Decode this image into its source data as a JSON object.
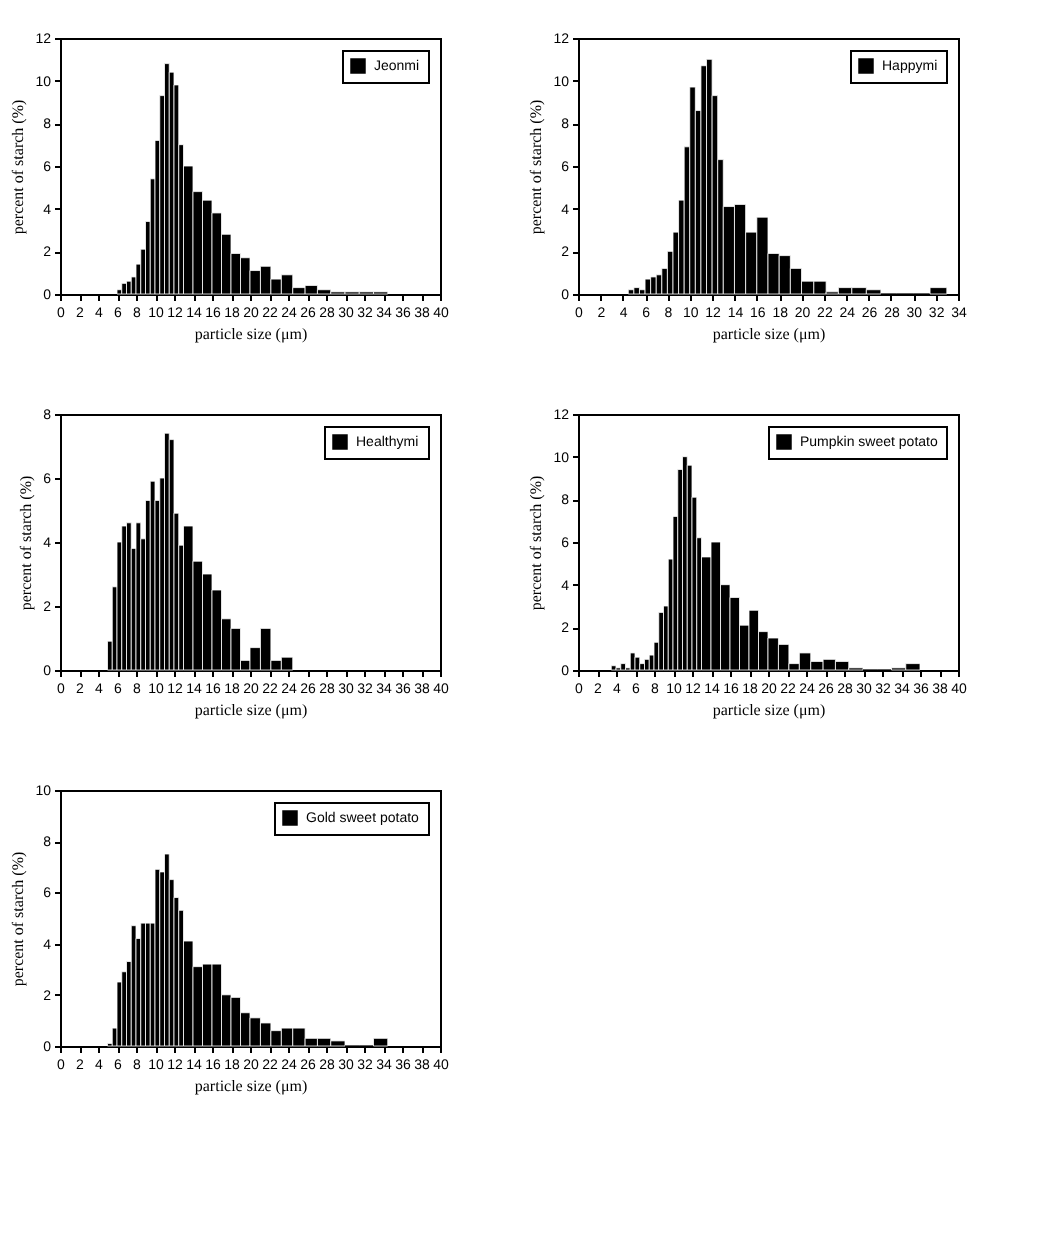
{
  "chart_data": [
    {
      "type": "histogram",
      "xlabel": "particle size (μm)",
      "ylabel": "percent of starch (%)",
      "xlim": [
        0,
        40
      ],
      "xticks": [
        0,
        2,
        4,
        6,
        8,
        10,
        12,
        14,
        16,
        18,
        20,
        22,
        24,
        26,
        28,
        30,
        32,
        34,
        36,
        38,
        40
      ],
      "ylim": [
        0,
        12
      ],
      "yticks": [
        0,
        2,
        4,
        6,
        8,
        10,
        12
      ],
      "legend": "top right",
      "bins": [
        6,
        6.5,
        7,
        7.5,
        8,
        8.5,
        9,
        9.5,
        10,
        10.5,
        11,
        11.5,
        12,
        12.5,
        13,
        14,
        15,
        16,
        17,
        18,
        19,
        20,
        21.1,
        22.2,
        23.3,
        24.5,
        25.8,
        27.1,
        28.5,
        30,
        31.5,
        33,
        34.5
      ],
      "series": [
        {
          "name": "Jeonmi",
          "color": "#000000",
          "values": [
            0.2,
            0.5,
            0.6,
            0.8,
            1.4,
            2.1,
            3.4,
            5.4,
            7.2,
            9.3,
            10.8,
            10.4,
            9.8,
            7.0,
            6.0,
            4.8,
            4.4,
            3.8,
            2.8,
            1.9,
            1.7,
            1.1,
            1.3,
            0.7,
            0.9,
            0.3,
            0.4,
            0.2,
            0.1,
            0.1,
            0.1,
            0.1
          ]
        }
      ]
    },
    {
      "type": "histogram",
      "xlabel": "particle size (μm)",
      "ylabel": "percent of starch (%)",
      "xlim": [
        0,
        34
      ],
      "xticks": [
        0,
        2,
        4,
        6,
        8,
        10,
        12,
        14,
        16,
        18,
        20,
        22,
        24,
        26,
        28,
        30,
        32,
        34
      ],
      "ylim": [
        0,
        12
      ],
      "yticks": [
        0,
        2,
        4,
        6,
        8,
        10,
        12
      ],
      "legend": "top right",
      "bins": [
        4.5,
        5,
        5.5,
        6,
        6.5,
        7,
        7.5,
        8,
        8.5,
        9,
        9.5,
        10,
        10.5,
        11,
        11.5,
        12,
        12.5,
        13,
        14,
        15,
        16,
        17,
        18,
        19,
        20,
        21.1,
        22.2,
        23.3,
        24.5,
        25.8,
        27.1,
        28.5,
        30,
        31.5,
        33
      ],
      "series": [
        {
          "name": "Happymi",
          "color": "#000000",
          "values": [
            0.2,
            0.3,
            0.2,
            0.7,
            0.8,
            0.9,
            1.2,
            2.0,
            2.9,
            4.4,
            6.9,
            9.7,
            8.6,
            10.7,
            11.0,
            9.3,
            6.3,
            4.1,
            4.2,
            2.9,
            3.6,
            1.9,
            1.8,
            1.2,
            0.6,
            0.6,
            0.1,
            0.3,
            0.3,
            0.2,
            0,
            0,
            0,
            0.3
          ]
        }
      ]
    },
    {
      "type": "histogram",
      "xlabel": "particle size (μm)",
      "ylabel": "percent of starch (%)",
      "xlim": [
        0,
        40
      ],
      "xticks": [
        0,
        2,
        4,
        6,
        8,
        10,
        12,
        14,
        16,
        18,
        20,
        22,
        24,
        26,
        28,
        30,
        32,
        34,
        36,
        38,
        40
      ],
      "ylim": [
        0,
        8
      ],
      "yticks": [
        0,
        2,
        4,
        6,
        8
      ],
      "legend": "top right",
      "bins": [
        5,
        5.5,
        6,
        6.5,
        7,
        7.5,
        8,
        8.5,
        9,
        9.5,
        10,
        10.5,
        11,
        11.5,
        12,
        12.5,
        13,
        14,
        15,
        16,
        17,
        18,
        19,
        20,
        21.1,
        22.2,
        23.3,
        24.5
      ],
      "series": [
        {
          "name": "Healthymi",
          "color": "#000000",
          "values": [
            0.9,
            2.6,
            4.0,
            4.5,
            4.6,
            3.8,
            4.6,
            4.1,
            5.3,
            5.9,
            5.3,
            6.0,
            7.4,
            7.2,
            4.9,
            3.9,
            4.5,
            3.4,
            3.0,
            2.5,
            1.6,
            1.3,
            0.3,
            0.7,
            1.3,
            0.3,
            0.4
          ]
        }
      ]
    },
    {
      "type": "histogram",
      "xlabel": "particle size (μm)",
      "ylabel": "percent of starch (%)",
      "xlim": [
        0,
        40
      ],
      "xticks": [
        0,
        2,
        4,
        6,
        8,
        10,
        12,
        14,
        16,
        18,
        20,
        22,
        24,
        26,
        28,
        30,
        32,
        34,
        36,
        38,
        40
      ],
      "ylim": [
        0,
        12
      ],
      "yticks": [
        0,
        2,
        4,
        6,
        8,
        10,
        12
      ],
      "legend": "top right",
      "bins": [
        3.5,
        4,
        4.5,
        5,
        5.5,
        6,
        6.5,
        7,
        7.5,
        8,
        8.5,
        9,
        9.5,
        10,
        10.5,
        11,
        11.5,
        12,
        12.5,
        13,
        14,
        15,
        16,
        17,
        18,
        19,
        20,
        21.1,
        22.2,
        23.3,
        24.5,
        25.8,
        27.1,
        28.5,
        30,
        31.5,
        33,
        34.5,
        36
      ],
      "series": [
        {
          "name": "Pumpkin sweet potato",
          "color": "#000000",
          "values": [
            0.2,
            0.1,
            0.3,
            0.1,
            0.8,
            0.6,
            0.3,
            0.5,
            0.7,
            1.3,
            2.7,
            3.0,
            5.2,
            7.2,
            9.4,
            10.0,
            9.6,
            8.1,
            6.2,
            5.3,
            6.0,
            4.0,
            3.4,
            2.1,
            2.8,
            1.8,
            1.5,
            1.2,
            0.3,
            0.8,
            0.4,
            0.5,
            0.4,
            0.1,
            0,
            0,
            0.1,
            0.3
          ]
        }
      ]
    },
    {
      "type": "histogram",
      "xlabel": "particle size (μm)",
      "ylabel": "percent of starch (%)",
      "xlim": [
        0,
        40
      ],
      "xticks": [
        0,
        2,
        4,
        6,
        8,
        10,
        12,
        14,
        16,
        18,
        20,
        22,
        24,
        26,
        28,
        30,
        32,
        34,
        36,
        38,
        40
      ],
      "ylim": [
        0,
        10
      ],
      "yticks": [
        0,
        2,
        4,
        6,
        8,
        10
      ],
      "legend": "top right",
      "bins": [
        5,
        5.5,
        6,
        6.5,
        7,
        7.5,
        8,
        8.5,
        9,
        9.5,
        10,
        10.5,
        11,
        11.5,
        12,
        12.5,
        13,
        14,
        15,
        16,
        17,
        18,
        19,
        20,
        21.1,
        22.2,
        23.3,
        24.5,
        25.8,
        27.1,
        28.5,
        30,
        31.5,
        33,
        34.5
      ],
      "series": [
        {
          "name": "Gold sweet potato",
          "color": "#000000",
          "values": [
            0.1,
            0.7,
            2.5,
            2.9,
            3.3,
            4.7,
            4.2,
            4.8,
            4.8,
            4.8,
            6.9,
            6.8,
            7.5,
            6.5,
            5.8,
            5.3,
            4.1,
            3.1,
            3.2,
            3.2,
            2.0,
            1.9,
            1.3,
            1.1,
            0.9,
            0.6,
            0.7,
            0.7,
            0.3,
            0.3,
            0.2,
            0,
            0,
            0.3
          ]
        }
      ]
    }
  ]
}
